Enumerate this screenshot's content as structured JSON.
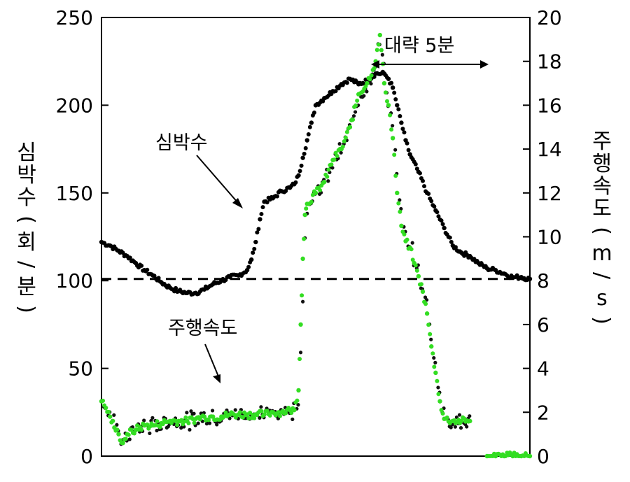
{
  "chart_data": {
    "type": "scatter",
    "title": "",
    "left_axis": {
      "label": "심박수(회/분)",
      "label_chars": [
        "심",
        "박",
        "수",
        "(",
        "회",
        "/",
        "분",
        ")"
      ],
      "range": [
        0,
        250
      ],
      "ticks": [
        "0",
        "50",
        "100",
        "150",
        "200",
        "250"
      ]
    },
    "right_axis": {
      "label": "주행속도(m/s)",
      "label_chars": [
        "주",
        "행",
        "속",
        "도",
        "(",
        "m",
        "/",
        "s",
        ")"
      ],
      "range": [
        0,
        20
      ],
      "ticks": [
        "0",
        "2",
        "4",
        "6",
        "8",
        "10",
        "12",
        "14",
        "16",
        "18",
        "20"
      ]
    },
    "x_range": [
      0,
      100
    ],
    "reference_line": {
      "axis": "left",
      "value": 101,
      "style": "dashed"
    },
    "annotations": {
      "heart_rate_label": "심박수",
      "speed_label": "주행속도",
      "duration_label": "대략 5분"
    },
    "series": [
      {
        "key": "heart_rate",
        "axis": "left",
        "color": "#000000",
        "points": [
          [
            0,
            122
          ],
          [
            2,
            120
          ],
          [
            4,
            117
          ],
          [
            6,
            114
          ],
          [
            8,
            110
          ],
          [
            10,
            106
          ],
          [
            12,
            103
          ],
          [
            14,
            99
          ],
          [
            16,
            96
          ],
          [
            18,
            94
          ],
          [
            20,
            93
          ],
          [
            22,
            93
          ],
          [
            24,
            95
          ],
          [
            26,
            98
          ],
          [
            28,
            100
          ],
          [
            30,
            102
          ],
          [
            32,
            103
          ],
          [
            34,
            106
          ],
          [
            35,
            112
          ],
          [
            36,
            122
          ],
          [
            37,
            135
          ],
          [
            38,
            145
          ],
          [
            40,
            147
          ],
          [
            42,
            151
          ],
          [
            44,
            153
          ],
          [
            45,
            155
          ],
          [
            46,
            160
          ],
          [
            47,
            170
          ],
          [
            48,
            180
          ],
          [
            49,
            190
          ],
          [
            50,
            200
          ],
          [
            52,
            204
          ],
          [
            54,
            208
          ],
          [
            56,
            212
          ],
          [
            58,
            215
          ],
          [
            60,
            212
          ],
          [
            62,
            214
          ],
          [
            64,
            218
          ],
          [
            66,
            218
          ],
          [
            67,
            215
          ],
          [
            68,
            210
          ],
          [
            69,
            200
          ],
          [
            70,
            190
          ],
          [
            71,
            180
          ],
          [
            72,
            172
          ],
          [
            74,
            162
          ],
          [
            76,
            150
          ],
          [
            78,
            140
          ],
          [
            80,
            130
          ],
          [
            82,
            120
          ],
          [
            84,
            116
          ],
          [
            86,
            114
          ],
          [
            88,
            110
          ],
          [
            90,
            107
          ],
          [
            92,
            106
          ],
          [
            94,
            104
          ],
          [
            96,
            102
          ],
          [
            98,
            102
          ],
          [
            100,
            101
          ]
        ]
      },
      {
        "key": "speed",
        "axis": "right",
        "color": "#33dd22",
        "points": [
          [
            0,
            2.5
          ],
          [
            1,
            2.2
          ],
          [
            2,
            1.8
          ],
          [
            3,
            1.3
          ],
          [
            4,
            1.0
          ],
          [
            5,
            0.6
          ],
          [
            6,
            1.0
          ],
          [
            8,
            1.2
          ],
          [
            10,
            1.4
          ],
          [
            12,
            1.4
          ],
          [
            14,
            1.5
          ],
          [
            16,
            1.6
          ],
          [
            18,
            1.6
          ],
          [
            20,
            1.6
          ],
          [
            22,
            1.7
          ],
          [
            24,
            1.8
          ],
          [
            26,
            1.8
          ],
          [
            28,
            1.8
          ],
          [
            30,
            1.9
          ],
          [
            32,
            1.9
          ],
          [
            34,
            1.9
          ],
          [
            36,
            1.9
          ],
          [
            38,
            1.9
          ],
          [
            40,
            2.0
          ],
          [
            42,
            2.0
          ],
          [
            44,
            2.1
          ],
          [
            45,
            2.1
          ],
          [
            46,
            3.0
          ],
          [
            46.5,
            6.0
          ],
          [
            47,
            9.0
          ],
          [
            47.5,
            11.0
          ],
          [
            48,
            11.5
          ],
          [
            50,
            12.0
          ],
          [
            52,
            12.5
          ],
          [
            54,
            13.5
          ],
          [
            56,
            14.0
          ],
          [
            58,
            15.0
          ],
          [
            60,
            16.5
          ],
          [
            62,
            17.0
          ],
          [
            64,
            18.0
          ],
          [
            65,
            19.2
          ],
          [
            66,
            17.0
          ],
          [
            67,
            16.0
          ],
          [
            68,
            14.5
          ],
          [
            69,
            12.0
          ],
          [
            70,
            10.5
          ],
          [
            71,
            9.8
          ],
          [
            72,
            9.5
          ],
          [
            73,
            8.8
          ],
          [
            74,
            8.2
          ],
          [
            75,
            7.5
          ],
          [
            76,
            6.5
          ],
          [
            77,
            5.0
          ],
          [
            78,
            3.8
          ],
          [
            79,
            2.5
          ],
          [
            80,
            1.7
          ],
          [
            82,
            1.6
          ],
          [
            84,
            1.6
          ],
          [
            86,
            1.6
          ]
        ]
      },
      {
        "key": "speed_zero",
        "axis": "right",
        "color": "#33dd22",
        "points": [
          [
            90,
            0
          ],
          [
            92,
            0
          ],
          [
            94,
            0
          ],
          [
            96,
            0
          ],
          [
            98,
            0
          ],
          [
            100,
            0
          ]
        ]
      }
    ]
  }
}
